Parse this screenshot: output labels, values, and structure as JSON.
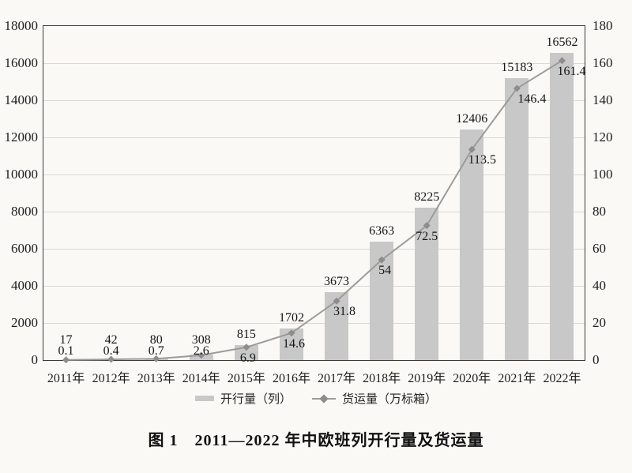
{
  "colors": {
    "background": "#fbf9f6",
    "bar": "#c8c8c8",
    "line": "#9b9b99",
    "marker": "#8d8d8b",
    "grid": "#d9d8d4",
    "axis_border": "#3b3b3b",
    "text": "#1d1d1d"
  },
  "legend": {
    "bar_label": "开行量（列）",
    "line_label": "货运量（万标箱）"
  },
  "caption": "图 1　2011—2022 年中欧班列开行量及货运量",
  "chart_data": {
    "type": "bar",
    "subtype": "bar+line combo, dual axis",
    "title": "图 1　2011—2022 年中欧班列开行量及货运量",
    "categories": [
      "2011年",
      "2012年",
      "2013年",
      "2014年",
      "2015年",
      "2016年",
      "2017年",
      "2018年",
      "2019年",
      "2020年",
      "2021年",
      "2022年"
    ],
    "series": [
      {
        "name": "开行量（列）",
        "type": "bar",
        "axis": "left",
        "values": [
          17,
          42,
          80,
          308,
          815,
          1702,
          3673,
          6363,
          8225,
          12406,
          15183,
          16562
        ]
      },
      {
        "name": "货运量（万标箱）",
        "type": "line",
        "axis": "right",
        "values": [
          0.1,
          0.4,
          0.7,
          2.6,
          6.9,
          14.6,
          31.8,
          54,
          72.5,
          113.5,
          146.4,
          161.4
        ]
      }
    ],
    "left_axis": {
      "min": 0,
      "max": 18000,
      "step": 2000,
      "ticks": [
        "0",
        "2000",
        "4000",
        "6000",
        "8000",
        "10000",
        "12000",
        "14000",
        "16000",
        "18000"
      ]
    },
    "right_axis": {
      "min": 0,
      "max": 180,
      "step": 20,
      "ticks": [
        "0",
        "20",
        "40",
        "60",
        "80",
        "100",
        "120",
        "140",
        "160",
        "180"
      ]
    },
    "grid": true,
    "data_labels": true,
    "legend_position": "bottom"
  }
}
